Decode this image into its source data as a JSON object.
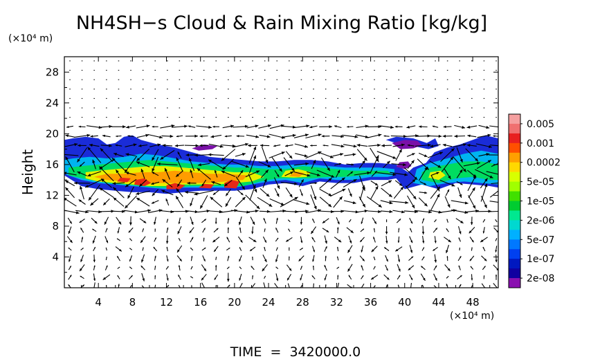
{
  "chart_data": {
    "type": "heatmap",
    "title": "NH4SH−s Cloud & Rain Mixing Ratio [kg/kg]",
    "ylabel": "Height",
    "y_unit_label": "(×10⁴ m)",
    "x_unit_label": "(×10⁴ m)",
    "footer": "TIME  =  3420000.0",
    "xlim": [
      0,
      51
    ],
    "ylim": [
      0,
      30
    ],
    "x_ticks": [
      4,
      8,
      12,
      16,
      20,
      24,
      28,
      32,
      36,
      40,
      44,
      48
    ],
    "y_ticks": [
      4,
      8,
      12,
      16,
      20,
      24,
      28
    ],
    "x_tick_labels": [
      "4",
      "8",
      "12",
      "16",
      "20",
      "24",
      "28",
      "32",
      "36",
      "40",
      "44",
      "48"
    ],
    "y_tick_labels": [
      "4",
      "8",
      "12",
      "16",
      "20",
      "24",
      "28"
    ],
    "grid": false,
    "colorbar": {
      "position": "right",
      "labels": [
        "0.005",
        "0.001",
        "0.0002",
        "5e-05",
        "1e-05",
        "2e-06",
        "5e-07",
        "1e-07",
        "2e-08"
      ],
      "colors_top_to_bottom": [
        "#f5a0a0",
        "#f07070",
        "#e82020",
        "#ff5000",
        "#ffa000",
        "#ffd800",
        "#d8ff00",
        "#a0ff00",
        "#40e000",
        "#00cc30",
        "#00e890",
        "#00d8d0",
        "#00b0ff",
        "#0078ff",
        "#0040f0",
        "#0018c0",
        "#1000a0",
        "#8a10b0"
      ]
    },
    "field_layers": [
      {
        "level": 0,
        "color": "#1a2cd8",
        "points": [
          [
            0,
            14.6
          ],
          [
            2,
            13.2
          ],
          [
            4,
            12.8
          ],
          [
            6,
            12.6
          ],
          [
            8,
            12.4
          ],
          [
            10,
            12.4
          ],
          [
            12,
            12.2
          ],
          [
            14,
            12.4
          ],
          [
            16,
            12.6
          ],
          [
            18,
            12.6
          ],
          [
            20,
            12.6
          ],
          [
            22,
            12.8
          ],
          [
            24,
            13.4
          ],
          [
            26,
            13.6
          ],
          [
            28,
            13.2
          ],
          [
            30,
            13.8
          ],
          [
            32,
            13.6
          ],
          [
            34,
            13.6
          ],
          [
            36,
            14.0
          ],
          [
            38,
            14.0
          ],
          [
            39,
            14.2
          ],
          [
            40,
            12.8
          ],
          [
            42,
            13.4
          ],
          [
            44,
            12.8
          ],
          [
            46,
            13.6
          ],
          [
            48,
            13.4
          ],
          [
            50,
            13.2
          ],
          [
            51,
            13.0
          ],
          [
            51,
            19.4
          ],
          [
            49.5,
            19.8
          ],
          [
            48,
            19.2
          ],
          [
            46.5,
            18.6
          ],
          [
            45,
            18.2
          ],
          [
            43.5,
            17.6
          ],
          [
            42.5,
            16.2
          ],
          [
            41,
            15.6
          ],
          [
            40.4,
            15.0
          ],
          [
            39,
            16.0
          ],
          [
            37,
            16.2
          ],
          [
            35,
            16.2
          ],
          [
            33,
            16.0
          ],
          [
            31,
            16.4
          ],
          [
            29,
            16.6
          ],
          [
            27,
            16.6
          ],
          [
            25,
            16.4
          ],
          [
            23,
            16.4
          ],
          [
            21,
            16.6
          ],
          [
            19,
            16.8
          ],
          [
            17,
            17.0
          ],
          [
            15,
            17.6
          ],
          [
            13,
            18.2
          ],
          [
            11,
            18.6
          ],
          [
            9,
            19.2
          ],
          [
            8,
            19.8
          ],
          [
            7,
            19.6
          ],
          [
            6,
            18.8
          ],
          [
            5,
            18.6
          ],
          [
            4,
            19.4
          ],
          [
            2.5,
            19.6
          ],
          [
            1,
            19.4
          ],
          [
            0,
            19.2
          ]
        ]
      },
      {
        "level": 0,
        "color": "#1a2cd8",
        "points": [
          [
            37.8,
            19.2
          ],
          [
            39,
            19.6
          ],
          [
            41,
            19.4
          ],
          [
            42.6,
            18.8
          ],
          [
            43.6,
            19.4
          ],
          [
            44,
            18.4
          ],
          [
            42.8,
            18.0
          ],
          [
            41,
            18.4
          ],
          [
            39.5,
            18.6
          ]
        ]
      },
      {
        "level": 0,
        "color": "#7a10a8",
        "points": [
          [
            38.5,
            18.8
          ],
          [
            39.5,
            18.0
          ],
          [
            41,
            18.1
          ],
          [
            42,
            18.5
          ],
          [
            41.5,
            19.1
          ],
          [
            40,
            19.2
          ]
        ]
      },
      {
        "level": 0,
        "color": "#7a10a8",
        "points": [
          [
            39.0,
            15.7
          ],
          [
            40.0,
            15.4
          ],
          [
            40.8,
            15.8
          ],
          [
            40.4,
            16.4
          ],
          [
            39.4,
            16.3
          ]
        ]
      },
      {
        "level": 0,
        "color": "#7a10a8",
        "points": [
          [
            15.0,
            18.1
          ],
          [
            16.4,
            18.6
          ],
          [
            18.0,
            18.4
          ],
          [
            17.4,
            18.0
          ],
          [
            15.8,
            17.8
          ]
        ]
      },
      {
        "level": 1,
        "color": "#00b4f0",
        "points": [
          [
            0,
            14.8
          ],
          [
            2,
            14.0
          ],
          [
            4,
            13.6
          ],
          [
            6,
            13.4
          ],
          [
            8,
            13.2
          ],
          [
            10,
            13.0
          ],
          [
            12,
            12.8
          ],
          [
            14,
            13.0
          ],
          [
            16,
            13.0
          ],
          [
            18,
            13.0
          ],
          [
            20,
            13.0
          ],
          [
            22,
            13.4
          ],
          [
            24,
            13.8
          ],
          [
            26,
            14.0
          ],
          [
            28,
            13.6
          ],
          [
            30,
            14.2
          ],
          [
            32,
            14.0
          ],
          [
            34,
            14.0
          ],
          [
            36,
            14.4
          ],
          [
            38,
            14.4
          ],
          [
            38.8,
            14.6
          ],
          [
            38.8,
            15.4
          ],
          [
            37,
            15.6
          ],
          [
            35,
            15.6
          ],
          [
            33,
            15.6
          ],
          [
            31,
            15.8
          ],
          [
            29,
            16.0
          ],
          [
            27,
            16.0
          ],
          [
            25,
            15.8
          ],
          [
            23,
            15.8
          ],
          [
            21,
            16.0
          ],
          [
            19,
            16.0
          ],
          [
            17,
            16.2
          ],
          [
            15,
            16.4
          ],
          [
            13,
            16.8
          ],
          [
            11,
            17.2
          ],
          [
            9,
            17.4
          ],
          [
            7,
            17.0
          ],
          [
            5,
            16.8
          ],
          [
            3,
            17.0
          ],
          [
            1,
            16.8
          ],
          [
            0,
            16.6
          ]
        ]
      },
      {
        "level": 1,
        "color": "#00b4f0",
        "points": [
          [
            41.0,
            13.6
          ],
          [
            43,
            13.2
          ],
          [
            45,
            13.6
          ],
          [
            47,
            13.8
          ],
          [
            49,
            13.6
          ],
          [
            51,
            13.4
          ],
          [
            51,
            17.4
          ],
          [
            49,
            17.8
          ],
          [
            47,
            17.4
          ],
          [
            45,
            16.8
          ],
          [
            43,
            16.2
          ],
          [
            41.4,
            15.4
          ]
        ]
      },
      {
        "level": 2,
        "color": "#00dc60",
        "points": [
          [
            0.5,
            14.6
          ],
          [
            3,
            14.0
          ],
          [
            5,
            13.6
          ],
          [
            7,
            13.4
          ],
          [
            9,
            13.2
          ],
          [
            11,
            13.0
          ],
          [
            13,
            13.0
          ],
          [
            15,
            13.2
          ],
          [
            17,
            13.2
          ],
          [
            19,
            13.2
          ],
          [
            21,
            13.2
          ],
          [
            23,
            13.8
          ],
          [
            25,
            14.2
          ],
          [
            27,
            14.2
          ],
          [
            29,
            14.2
          ],
          [
            31,
            14.4
          ],
          [
            33,
            14.4
          ],
          [
            35,
            14.6
          ],
          [
            37,
            14.8
          ],
          [
            38.4,
            14.8
          ],
          [
            38,
            15.2
          ],
          [
            36,
            15.2
          ],
          [
            34,
            15.2
          ],
          [
            32,
            15.4
          ],
          [
            30,
            15.6
          ],
          [
            28,
            15.8
          ],
          [
            26,
            15.4
          ],
          [
            24,
            15.4
          ],
          [
            22,
            15.6
          ],
          [
            20,
            15.6
          ],
          [
            18,
            15.8
          ],
          [
            16,
            16.0
          ],
          [
            14,
            16.2
          ],
          [
            12,
            16.4
          ],
          [
            10,
            16.6
          ],
          [
            8,
            16.4
          ],
          [
            6,
            16.2
          ],
          [
            4,
            16.0
          ],
          [
            2,
            15.8
          ],
          [
            0.5,
            15.6
          ]
        ]
      },
      {
        "level": 2,
        "color": "#00dc60",
        "points": [
          [
            42.0,
            14.0
          ],
          [
            44,
            13.6
          ],
          [
            46,
            14.2
          ],
          [
            48,
            14.4
          ],
          [
            50,
            14.0
          ],
          [
            51,
            14.0
          ],
          [
            51,
            16.0
          ],
          [
            49,
            16.4
          ],
          [
            47,
            16.4
          ],
          [
            45,
            16.0
          ],
          [
            43,
            15.6
          ],
          [
            42,
            15.0
          ]
        ]
      },
      {
        "level": 3,
        "color": "#e8f000",
        "points": [
          [
            2.5,
            14.2
          ],
          [
            4,
            13.8
          ],
          [
            6,
            13.6
          ],
          [
            8,
            13.4
          ],
          [
            10,
            13.2
          ],
          [
            12,
            13.2
          ],
          [
            14,
            13.4
          ],
          [
            16,
            13.4
          ],
          [
            18,
            13.4
          ],
          [
            20,
            13.6
          ],
          [
            22,
            13.8
          ],
          [
            23.5,
            14.4
          ],
          [
            22,
            15.0
          ],
          [
            20,
            15.0
          ],
          [
            18,
            15.2
          ],
          [
            16,
            15.4
          ],
          [
            14,
            15.6
          ],
          [
            12,
            15.8
          ],
          [
            10,
            15.8
          ],
          [
            8,
            15.6
          ],
          [
            6,
            15.4
          ],
          [
            4,
            15.2
          ],
          [
            2.5,
            15.0
          ]
        ]
      },
      {
        "level": 3,
        "color": "#e8f000",
        "points": [
          [
            25.5,
            14.4
          ],
          [
            27,
            14.3
          ],
          [
            28.5,
            14.4
          ],
          [
            29,
            15.0
          ],
          [
            27.5,
            15.4
          ],
          [
            26,
            15.2
          ]
        ]
      },
      {
        "level": 3,
        "color": "#e8f000",
        "points": [
          [
            42.8,
            14.3
          ],
          [
            44,
            14.0
          ],
          [
            44.8,
            14.6
          ],
          [
            44.2,
            15.2
          ],
          [
            43,
            15.0
          ]
        ]
      },
      {
        "level": 4,
        "color": "#ff9c00",
        "points": [
          [
            3.5,
            14.4
          ],
          [
            5,
            14.0
          ],
          [
            7,
            13.8
          ],
          [
            9,
            13.6
          ],
          [
            11,
            13.6
          ],
          [
            13,
            13.6
          ],
          [
            15,
            13.6
          ],
          [
            17,
            13.6
          ],
          [
            19,
            13.8
          ],
          [
            21,
            14.0
          ],
          [
            21.5,
            14.6
          ],
          [
            19,
            14.8
          ],
          [
            17,
            14.8
          ],
          [
            15,
            15.0
          ],
          [
            13,
            15.2
          ],
          [
            11,
            15.0
          ],
          [
            9,
            15.0
          ],
          [
            7,
            14.8
          ],
          [
            5,
            14.8
          ]
        ]
      },
      {
        "level": 4,
        "color": "#ff9c00",
        "points": [
          [
            26.4,
            14.5
          ],
          [
            27.6,
            14.4
          ],
          [
            28.2,
            14.9
          ],
          [
            27.2,
            15.1
          ]
        ]
      },
      {
        "level": 5,
        "color": "#e82818",
        "points": [
          [
            8.2,
            13.4
          ],
          [
            9.4,
            13.2
          ],
          [
            10.2,
            13.6
          ],
          [
            9.4,
            14.2
          ],
          [
            8.4,
            14.0
          ]
        ]
      },
      {
        "level": 5,
        "color": "#e82818",
        "points": [
          [
            12.0,
            12.8
          ],
          [
            13.6,
            12.8
          ],
          [
            14.2,
            13.3
          ],
          [
            13.0,
            13.6
          ],
          [
            12.0,
            13.3
          ]
        ]
      },
      {
        "level": 5,
        "color": "#e82818",
        "points": [
          [
            18.8,
            13.0
          ],
          [
            20.2,
            12.9
          ],
          [
            20.6,
            13.8
          ],
          [
            19.6,
            14.0
          ],
          [
            18.8,
            13.6
          ]
        ]
      },
      {
        "level": 5,
        "color": "#e82818",
        "points": [
          [
            15.8,
            13.0
          ],
          [
            17.2,
            12.9
          ],
          [
            17.6,
            13.4
          ],
          [
            16.4,
            13.5
          ]
        ]
      },
      {
        "level": 5,
        "color": "#e82818",
        "points": [
          [
            6.2,
            13.8
          ],
          [
            7.4,
            13.7
          ],
          [
            7.8,
            14.2
          ],
          [
            6.6,
            14.3
          ]
        ]
      }
    ]
  }
}
